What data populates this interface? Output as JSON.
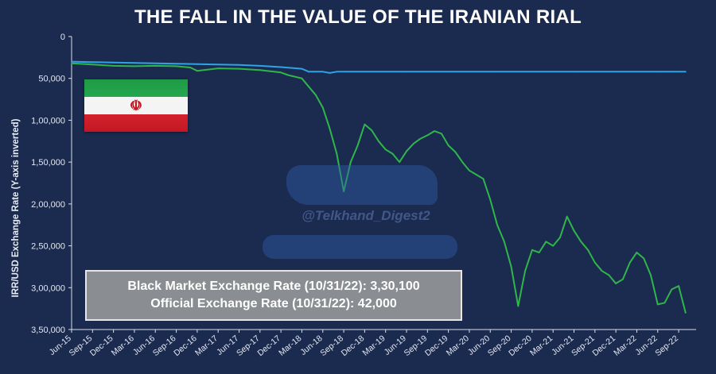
{
  "chart_data": {
    "type": "line",
    "title": "THE FALL IN THE VALUE OF THE IRANIAN RIAL",
    "ylabel": "IRR/USD Exchange Rate (Y-axis inverted)",
    "xlabel": "",
    "y_inverted": true,
    "ylim": [
      0,
      350000
    ],
    "y_ticks": [
      {
        "value": 0,
        "label": "0"
      },
      {
        "value": 50000,
        "label": "50,000"
      },
      {
        "value": 100000,
        "label": "1,00,000"
      },
      {
        "value": 150000,
        "label": "1,50,000"
      },
      {
        "value": 200000,
        "label": "2,00,000"
      },
      {
        "value": 250000,
        "label": "2,50,000"
      },
      {
        "value": 300000,
        "label": "3,00,000"
      },
      {
        "value": 350000,
        "label": "3,50,000"
      }
    ],
    "x_ticks": [
      "Jun-15",
      "Sep-15",
      "Dec-15",
      "Mar-16",
      "Jun-16",
      "Sep-16",
      "Dec-16",
      "Mar-17",
      "Jun-17",
      "Sep-17",
      "Dec-17",
      "Mar-18",
      "Jun-18",
      "Sep-18",
      "Dec-18",
      "Mar-19",
      "Jun-19",
      "Sep-19",
      "Dec-19",
      "Mar-20",
      "Jun-20",
      "Sep-20",
      "Dec-20",
      "Mar-21",
      "Jun-21",
      "Sep-21",
      "Dec-21",
      "Mar-22",
      "Jun-22",
      "Sep-22"
    ],
    "x_range": [
      "Jun-15",
      "Nov-22"
    ],
    "grid": false,
    "series": [
      {
        "key": "official",
        "color": "#2ea3e6",
        "points": [
          [
            "Jun-15",
            30000
          ],
          [
            "Sep-15",
            30500
          ],
          [
            "Dec-15",
            31000
          ],
          [
            "Mar-16",
            31500
          ],
          [
            "Jun-16",
            32000
          ],
          [
            "Sep-16",
            32500
          ],
          [
            "Dec-16",
            33000
          ],
          [
            "Mar-17",
            33500
          ],
          [
            "Jun-17",
            34000
          ],
          [
            "Sep-17",
            35000
          ],
          [
            "Dec-17",
            36500
          ],
          [
            "Mar-18",
            38500
          ],
          [
            "Apr-18",
            42000
          ],
          [
            "Jun-18",
            42000
          ],
          [
            "Jul-18",
            43500
          ],
          [
            "Aug-18",
            42000
          ],
          [
            "Jun-19",
            42000
          ],
          [
            "Jun-20",
            42000
          ],
          [
            "Jun-21",
            42000
          ],
          [
            "Jun-22",
            42000
          ],
          [
            "Oct-22",
            42000
          ]
        ]
      },
      {
        "key": "black-market",
        "color": "#2fb64a",
        "points": [
          [
            "Jun-15",
            32000
          ],
          [
            "Sep-15",
            33500
          ],
          [
            "Dec-15",
            35000
          ],
          [
            "Mar-16",
            35500
          ],
          [
            "Jun-16",
            35000
          ],
          [
            "Sep-16",
            35500
          ],
          [
            "Nov-16",
            37000
          ],
          [
            "Dec-16",
            41000
          ],
          [
            "Mar-17",
            38000
          ],
          [
            "Jun-17",
            38500
          ],
          [
            "Sep-17",
            40000
          ],
          [
            "Dec-17",
            43000
          ],
          [
            "Jan-18",
            46000
          ],
          [
            "Feb-18",
            48000
          ],
          [
            "Mar-18",
            50000
          ],
          [
            "Apr-18",
            60000
          ],
          [
            "May-18",
            70000
          ],
          [
            "Jun-18",
            85000
          ],
          [
            "Jul-18",
            110000
          ],
          [
            "Aug-18",
            140000
          ],
          [
            "Sep-18",
            185000
          ],
          [
            "Oct-18",
            150000
          ],
          [
            "Nov-18",
            130000
          ],
          [
            "Dec-18",
            105000
          ],
          [
            "Jan-19",
            112000
          ],
          [
            "Feb-19",
            125000
          ],
          [
            "Mar-19",
            135000
          ],
          [
            "Apr-19",
            140000
          ],
          [
            "May-19",
            150000
          ],
          [
            "Jun-19",
            137000
          ],
          [
            "Jul-19",
            128000
          ],
          [
            "Aug-19",
            122000
          ],
          [
            "Sep-19",
            118000
          ],
          [
            "Oct-19",
            113000
          ],
          [
            "Nov-19",
            116000
          ],
          [
            "Dec-19",
            130000
          ],
          [
            "Jan-20",
            138000
          ],
          [
            "Feb-20",
            150000
          ],
          [
            "Mar-20",
            160000
          ],
          [
            "Apr-20",
            165000
          ],
          [
            "May-20",
            170000
          ],
          [
            "Jun-20",
            195000
          ],
          [
            "Jul-20",
            225000
          ],
          [
            "Aug-20",
            245000
          ],
          [
            "Sep-20",
            275000
          ],
          [
            "Oct-20",
            322000
          ],
          [
            "Nov-20",
            280000
          ],
          [
            "Dec-20",
            255000
          ],
          [
            "Jan-21",
            258000
          ],
          [
            "Feb-21",
            245000
          ],
          [
            "Mar-21",
            250000
          ],
          [
            "Apr-21",
            240000
          ],
          [
            "May-21",
            215000
          ],
          [
            "Jun-21",
            232000
          ],
          [
            "Jul-21",
            245000
          ],
          [
            "Aug-21",
            255000
          ],
          [
            "Sep-21",
            270000
          ],
          [
            "Oct-21",
            280000
          ],
          [
            "Nov-21",
            285000
          ],
          [
            "Dec-21",
            295000
          ],
          [
            "Jan-22",
            290000
          ],
          [
            "Feb-22",
            270000
          ],
          [
            "Mar-22",
            258000
          ],
          [
            "Apr-22",
            265000
          ],
          [
            "May-22",
            285000
          ],
          [
            "Jun-22",
            320000
          ],
          [
            "Jul-22",
            318000
          ],
          [
            "Aug-22",
            302000
          ],
          [
            "Sep-22",
            298000
          ],
          [
            "Oct-22",
            330100
          ]
        ]
      }
    ],
    "annotations": [
      "Black Market Exchange Rate (10/31/22): 3,30,100",
      "Official Exchange Rate (10/31/22): 42,000"
    ]
  },
  "watermark": {
    "handle": "@Telkhand_Digest2"
  }
}
